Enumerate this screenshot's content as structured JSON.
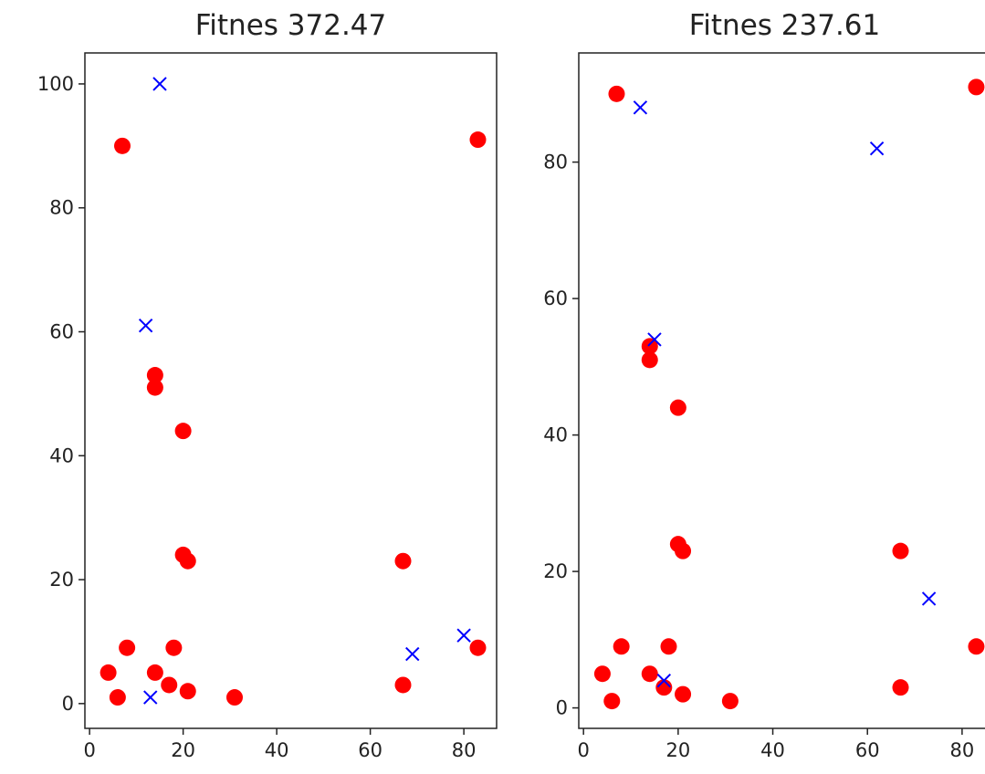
{
  "chart_data": [
    {
      "type": "scatter",
      "title": "Fitnes 372.47",
      "xlim": [
        -1,
        87
      ],
      "ylim": [
        -4,
        105
      ],
      "xticks": [
        0,
        20,
        40,
        60,
        80
      ],
      "yticks": [
        0,
        20,
        40,
        60,
        80,
        100
      ],
      "series": [
        {
          "marker": "circle",
          "color": "#ff0000",
          "points": [
            [
              7,
              90
            ],
            [
              83,
              91
            ],
            [
              14,
              53
            ],
            [
              14,
              51
            ],
            [
              20,
              44
            ],
            [
              20,
              24
            ],
            [
              21,
              23
            ],
            [
              67,
              23
            ],
            [
              8,
              9
            ],
            [
              18,
              9
            ],
            [
              83,
              9
            ],
            [
              4,
              5
            ],
            [
              14,
              5
            ],
            [
              17,
              3
            ],
            [
              67,
              3
            ],
            [
              21,
              2
            ],
            [
              6,
              1
            ],
            [
              31,
              1
            ]
          ]
        },
        {
          "marker": "x",
          "color": "#0000ff",
          "points": [
            [
              15,
              100
            ],
            [
              12,
              61
            ],
            [
              80,
              11
            ],
            [
              69,
              8
            ],
            [
              13,
              1
            ]
          ]
        }
      ]
    },
    {
      "type": "scatter",
      "title": "Fitnes 237.61",
      "xlim": [
        -1,
        86
      ],
      "ylim": [
        -3,
        96
      ],
      "xticks": [
        0,
        20,
        40,
        60,
        80
      ],
      "yticks": [
        0,
        20,
        40,
        60,
        80
      ],
      "series": [
        {
          "marker": "circle",
          "color": "#ff0000",
          "points": [
            [
              7,
              90
            ],
            [
              83,
              91
            ],
            [
              14,
              53
            ],
            [
              14,
              51
            ],
            [
              20,
              44
            ],
            [
              20,
              24
            ],
            [
              21,
              23
            ],
            [
              67,
              23
            ],
            [
              8,
              9
            ],
            [
              18,
              9
            ],
            [
              83,
              9
            ],
            [
              4,
              5
            ],
            [
              14,
              5
            ],
            [
              17,
              3
            ],
            [
              67,
              3
            ],
            [
              21,
              2
            ],
            [
              6,
              1
            ],
            [
              31,
              1
            ]
          ]
        },
        {
          "marker": "x",
          "color": "#0000ff",
          "points": [
            [
              12,
              88
            ],
            [
              62,
              82
            ],
            [
              15,
              54
            ],
            [
              73,
              16
            ],
            [
              17,
              4
            ]
          ]
        }
      ]
    }
  ]
}
